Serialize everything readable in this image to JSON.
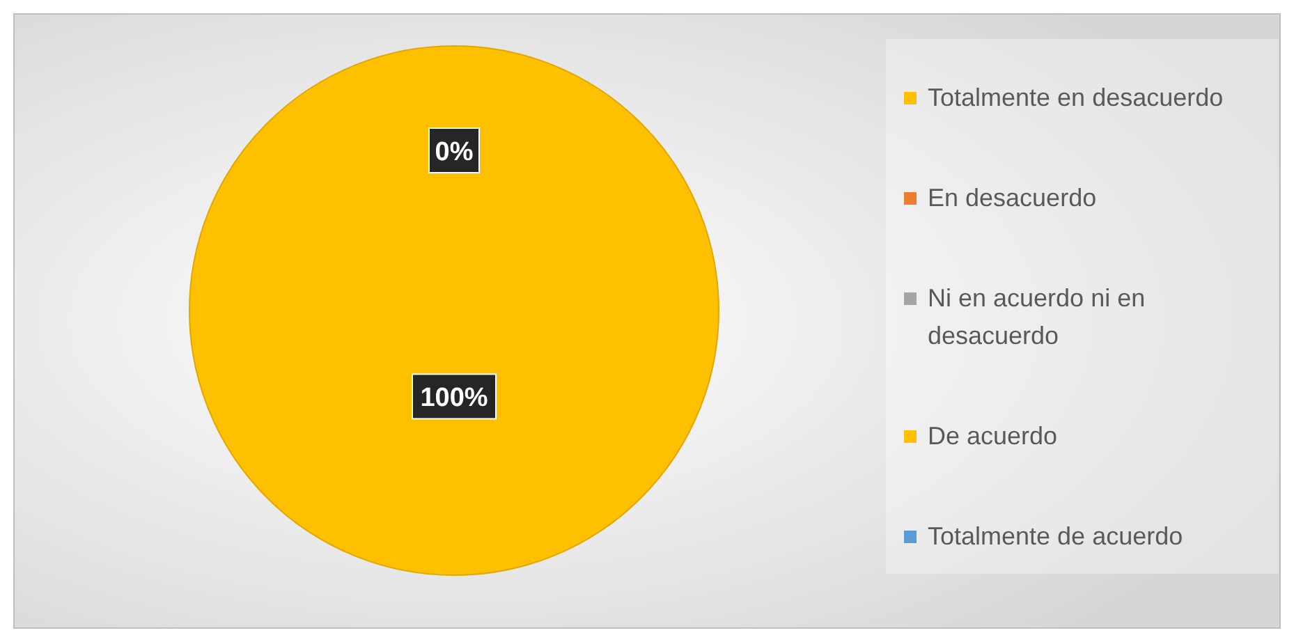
{
  "chart_data": {
    "type": "pie",
    "categories": [
      "Totalmente en desacuerdo",
      "En desacuerdo",
      "Ni en acuerdo ni en desacuerdo",
      "De acuerdo",
      "Totalmente de acuerdo"
    ],
    "values": [
      0,
      0,
      0,
      100,
      0
    ],
    "colors": [
      "#ffc000",
      "#ed7d31",
      "#a5a5a5",
      "#ffc000",
      "#5b9bd5"
    ],
    "value_labels": [
      "0%",
      null,
      null,
      "100%",
      null
    ],
    "legend": "right"
  }
}
